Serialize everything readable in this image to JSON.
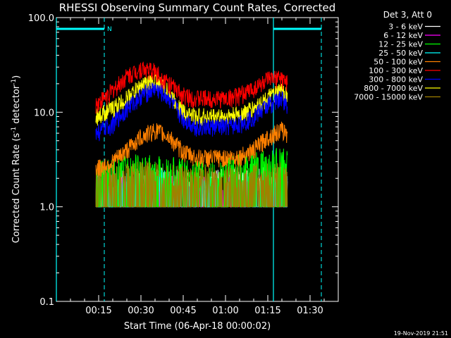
{
  "chart_data": {
    "type": "line",
    "title": "RHESSI Observing Summary Count Rates, Corrected",
    "xlabel": "Start Time (06-Apr-18 00:00:02)",
    "ylabel": "Corrected Count Rate (s⁻¹ detector⁻¹)",
    "ylabel_main": "Corrected Count Rate (s",
    "ylabel_sup1": "-1",
    "ylabel_mid": " detector",
    "ylabel_sup2": "-1",
    "ylabel_end": ")",
    "yscale": "log",
    "ylim": [
      0.1,
      100.0
    ],
    "xlim_minutes": [
      0,
      100
    ],
    "x_ticks": [
      {
        "label": "00:15",
        "minute": 15
      },
      {
        "label": "00:30",
        "minute": 30
      },
      {
        "label": "00:45",
        "minute": 45
      },
      {
        "label": "01:00",
        "minute": 60
      },
      {
        "label": "01:15",
        "minute": 75
      },
      {
        "label": "01:30",
        "minute": 90
      }
    ],
    "y_ticks": [
      {
        "label": "100.0",
        "value": 100
      },
      {
        "label": "10.0",
        "value": 10
      },
      {
        "label": "1.0",
        "value": 1
      },
      {
        "label": "0.1",
        "value": 0.1
      }
    ],
    "legend_header": "Det 3, Att 0",
    "legend_position": "outside-right",
    "series": [
      {
        "name": "3 - 6 keV",
        "color": "#ffffff",
        "x": [
          14,
          20,
          25,
          30,
          35,
          40,
          45,
          50,
          55,
          60,
          65,
          70,
          75,
          80,
          82
        ],
        "y": [
          1.8,
          1.8,
          1.8,
          1.9,
          1.9,
          1.8,
          1.7,
          1.7,
          1.7,
          1.8,
          1.8,
          1.8,
          1.9,
          1.9,
          1.8
        ]
      },
      {
        "name": "6 - 12 keV",
        "color": "#ff00ff",
        "x": [
          14,
          20,
          30,
          40,
          50,
          60,
          70,
          80,
          82
        ],
        "y": [
          1.6,
          1.6,
          1.7,
          1.6,
          1.5,
          1.5,
          1.6,
          1.7,
          1.6
        ]
      },
      {
        "name": "12 - 25 keV",
        "color": "#00ff00",
        "x": [
          14,
          20,
          30,
          40,
          50,
          60,
          70,
          80,
          82
        ],
        "y": [
          2.3,
          2.3,
          2.6,
          2.4,
          2.2,
          2.3,
          2.8,
          3.0,
          2.8
        ]
      },
      {
        "name": "25 - 50 keV",
        "color": "#00ffff",
        "x": [
          14,
          20,
          30,
          40,
          50,
          60,
          70,
          80,
          82
        ],
        "y": [
          1.5,
          1.6,
          1.9,
          1.7,
          1.5,
          1.5,
          1.6,
          1.8,
          1.7
        ]
      },
      {
        "name": "50 - 100 keV",
        "color": "#ff8000",
        "x": [
          14,
          20,
          25,
          30,
          35,
          40,
          45,
          50,
          55,
          60,
          65,
          70,
          75,
          80,
          82
        ],
        "y": [
          2.5,
          3.0,
          4.0,
          5.5,
          6.5,
          5.5,
          3.8,
          3.3,
          3.3,
          3.3,
          3.4,
          4.0,
          5.5,
          6.5,
          6.0
        ]
      },
      {
        "name": "100 - 300 keV",
        "color": "#ff0000",
        "x": [
          14,
          20,
          25,
          30,
          35,
          40,
          45,
          50,
          55,
          60,
          65,
          70,
          75,
          80,
          82
        ],
        "y": [
          12,
          17,
          24,
          29,
          27,
          20,
          15,
          14,
          14,
          14,
          15,
          18,
          22,
          23,
          20
        ]
      },
      {
        "name": "300 - 800 keV",
        "color": "#0000ff",
        "x": [
          14,
          20,
          25,
          30,
          35,
          40,
          45,
          50,
          55,
          60,
          65,
          70,
          75,
          80,
          82
        ],
        "y": [
          6.0,
          7.5,
          11,
          15,
          18,
          14,
          8.5,
          7.0,
          7.0,
          7.0,
          7.5,
          9.0,
          12,
          14,
          12
        ]
      },
      {
        "name": "800 - 7000 keV",
        "color": "#ffff00",
        "x": [
          14,
          20,
          25,
          30,
          35,
          40,
          45,
          50,
          55,
          60,
          65,
          70,
          75,
          80,
          82
        ],
        "y": [
          9.0,
          11,
          14,
          19,
          22,
          16,
          10,
          9.0,
          9.0,
          9.0,
          9.5,
          11,
          14,
          17,
          15
        ]
      },
      {
        "name": "7000 - 15000 keV",
        "color": "#a08000",
        "x": [
          14,
          20,
          30,
          40,
          50,
          60,
          70,
          80,
          82
        ],
        "y": [
          2.0,
          2.0,
          2.2,
          2.0,
          1.9,
          1.9,
          2.0,
          2.1,
          2.0
        ]
      }
    ],
    "markers": {
      "flag_label": "N",
      "line_color": "#00ffff",
      "solid_minutes": [
        0,
        77
      ],
      "dashed_minutes": [
        17,
        94
      ],
      "bars": [
        [
          0,
          17
        ],
        [
          77,
          94
        ]
      ]
    }
  },
  "footer": {
    "timestamp": "19-Nov-2019 21:51"
  }
}
